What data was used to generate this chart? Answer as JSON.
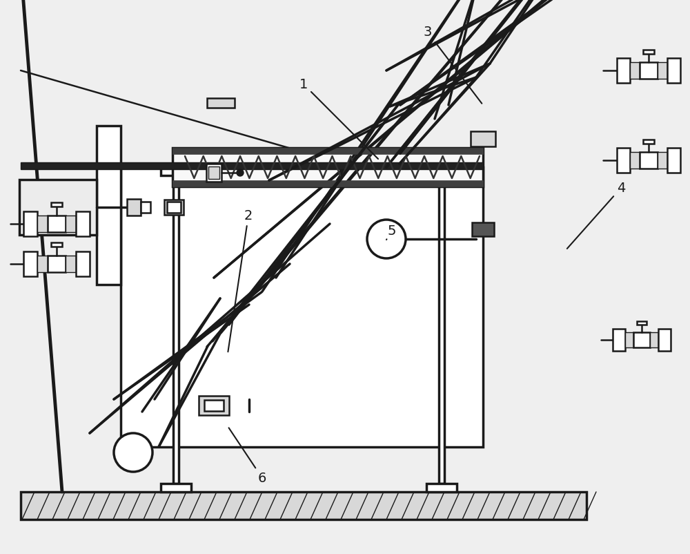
{
  "bg_color": "#efefef",
  "lc": "#1a1a1a",
  "wc": "#ffffff",
  "gc": "#d8d8d8",
  "lw": 1.8,
  "lw2": 2.5,
  "lw3": 3.5,
  "lw_thin": 1.0,
  "fs": 14
}
